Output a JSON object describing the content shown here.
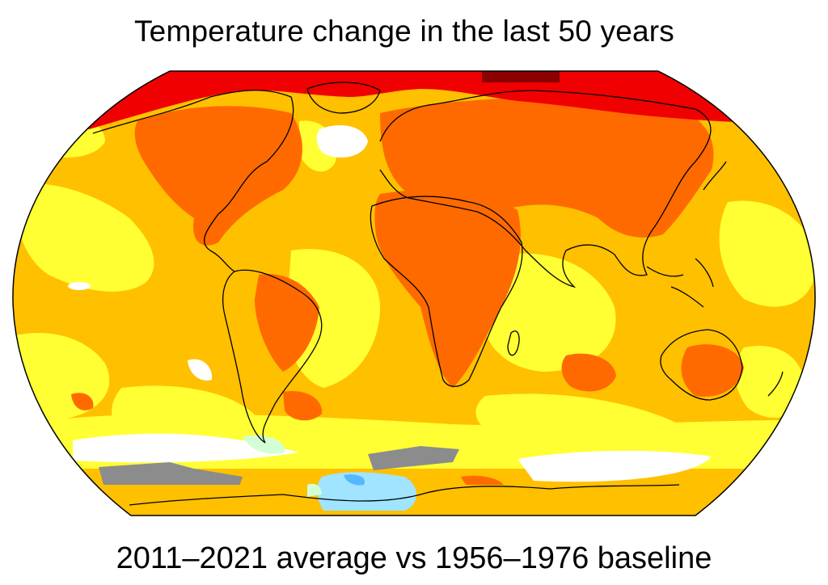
{
  "title": "Temperature change in the last 50 years",
  "caption": "2011–2021 average vs 1956–1976 baseline",
  "projection": "Robinson",
  "colors": {
    "deep_red": "#8b0000",
    "red": "#f00000",
    "dark_orange": "#ff6a00",
    "orange": "#ffc000",
    "yellow": "#ffff33",
    "white": "#ffffff",
    "light_green": "#d4ffd4",
    "light_blue": "#a0e4ff",
    "blue": "#55b8ff",
    "gray": "#8c8c8c",
    "outline": "#000000"
  },
  "icons": {
    "map": "world-temperature-anomaly-map"
  }
}
